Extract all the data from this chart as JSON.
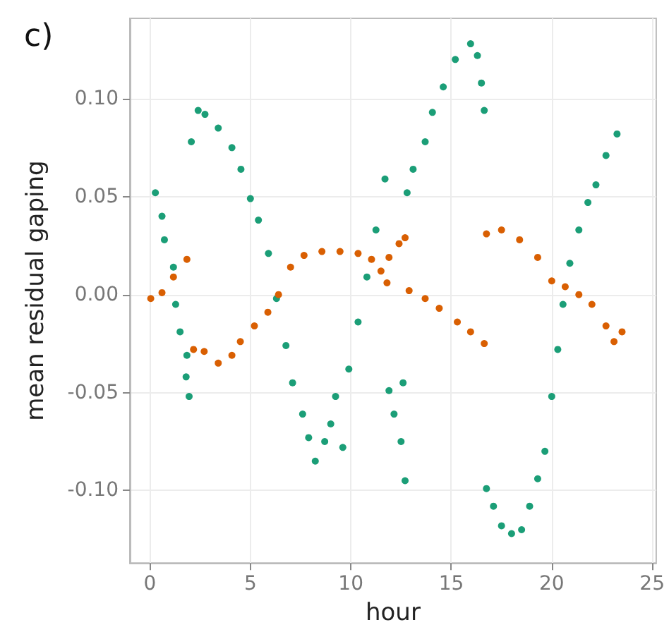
{
  "chart_data": {
    "type": "scatter",
    "title": "c)",
    "xlabel": "hour",
    "ylabel": "mean residual gaping",
    "xlim": [
      -1,
      25.2
    ],
    "xticks": [
      0,
      5,
      10,
      15,
      20,
      25
    ],
    "ylim": [
      -0.137,
      0.141
    ],
    "yticks": [
      {
        "value": -0.1,
        "label": "-0.10"
      },
      {
        "value": -0.05,
        "label": "-0.05"
      },
      {
        "value": 0,
        "label": "0.00"
      },
      {
        "value": 0.05,
        "label": "0.05"
      },
      {
        "value": 0.1,
        "label": "0.10"
      }
    ],
    "grid": true,
    "marker": "circle",
    "series": [
      {
        "color": "#1b9e77",
        "x": [
          0.27,
          0.6,
          0.72,
          1.17,
          1.28,
          1.5,
          1.84,
          1.8,
          1.95,
          2.06,
          2.4,
          2.74,
          3.4,
          4.08,
          4.53,
          5.0,
          5.4,
          5.9,
          6.3,
          6.77,
          7.1,
          7.6,
          7.9,
          8.23,
          8.7,
          9.0,
          9.6,
          9.24,
          9.9,
          10.36,
          10.8,
          11.25,
          11.7,
          11.9,
          12.15,
          12.5,
          12.7,
          12.6,
          12.8,
          13.1,
          13.7,
          14.06,
          14.6,
          15.2,
          15.96,
          16.3,
          16.5,
          16.64,
          16.75,
          17.1,
          17.5,
          18.0,
          18.5,
          18.9,
          19.3,
          19.66,
          20.0,
          20.3,
          20.56,
          20.9,
          21.35,
          21.8,
          22.2,
          22.7,
          23.25
        ],
        "values": [
          0.052,
          0.04,
          0.028,
          0.014,
          -0.005,
          -0.019,
          -0.031,
          -0.042,
          -0.052,
          0.078,
          0.094,
          0.092,
          0.085,
          0.075,
          0.064,
          0.049,
          0.038,
          0.021,
          -0.002,
          -0.026,
          -0.045,
          -0.061,
          -0.073,
          -0.085,
          -0.075,
          -0.066,
          -0.078,
          -0.052,
          -0.038,
          -0.014,
          0.009,
          0.033,
          0.059,
          -0.049,
          -0.061,
          -0.075,
          -0.095,
          -0.045,
          0.052,
          0.064,
          0.078,
          0.093,
          0.106,
          0.12,
          0.128,
          0.122,
          0.108,
          0.094,
          -0.099,
          -0.108,
          -0.118,
          -0.122,
          -0.12,
          -0.108,
          -0.094,
          -0.08,
          -0.052,
          -0.028,
          -0.005,
          0.016,
          0.033,
          0.047,
          0.056,
          0.071,
          0.082
        ]
      },
      {
        "color": "#d95f02",
        "x": [
          0.04,
          0.6,
          1.17,
          1.84,
          2.17,
          2.7,
          3.4,
          4.08,
          4.5,
          5.2,
          5.87,
          6.4,
          7.0,
          7.67,
          8.56,
          9.46,
          10.36,
          11.03,
          11.5,
          11.8,
          11.9,
          12.4,
          12.7,
          12.9,
          13.7,
          14.4,
          15.3,
          15.96,
          16.64,
          16.75,
          17.5,
          18.4,
          19.3,
          20.0,
          20.67,
          21.35,
          22.0,
          22.7,
          23.1,
          23.5
        ],
        "values": [
          -0.002,
          0.001,
          0.009,
          0.018,
          -0.028,
          -0.029,
          -0.035,
          -0.031,
          -0.024,
          -0.016,
          -0.009,
          0.0,
          0.014,
          0.02,
          0.022,
          0.022,
          0.021,
          0.018,
          0.012,
          0.006,
          0.019,
          0.026,
          0.029,
          0.002,
          -0.002,
          -0.007,
          -0.014,
          -0.019,
          -0.025,
          0.031,
          0.033,
          0.028,
          0.019,
          0.007,
          0.004,
          0.0,
          -0.005,
          -0.016,
          -0.024,
          -0.019
        ]
      }
    ]
  }
}
